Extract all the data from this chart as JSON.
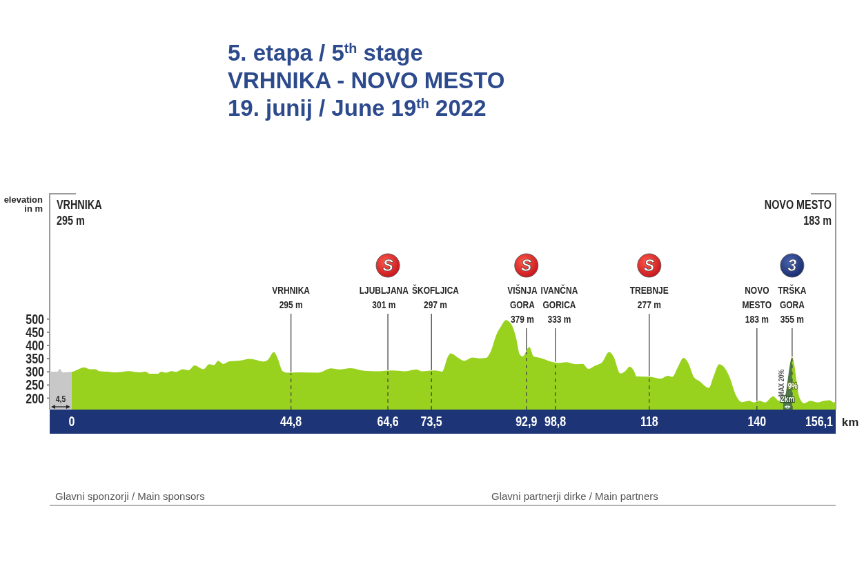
{
  "chart_data": {
    "type": "area",
    "title": "5. etapa / 5$^{th}$ stage",
    "subtitle": "VRHNIKA - NOVO MESTO\n19. junij / June 19$^{th}$ 2022",
    "xlabel": "km",
    "ylabel": "elevation\nin m",
    "color": "#98d21f",
    "x": [
      -4.5,
      -2.9,
      -2.4,
      -1.9,
      0,
      1.4,
      2.5,
      3.7,
      4.9,
      5.6,
      7.2,
      9.1,
      11.7,
      13.8,
      15.1,
      15.9,
      17.6,
      18.3,
      19.2,
      20.4,
      21.3,
      22.7,
      23.9,
      25.1,
      26.9,
      28.1,
      29.1,
      29.9,
      31.0,
      32.1,
      34.5,
      36.3,
      37.7,
      39.1,
      40.1,
      41.3,
      42.0,
      43.1,
      44.1,
      46.4,
      50.4,
      53.0,
      54.6,
      57.0,
      59.8,
      62.6,
      65.4,
      68.2,
      70.4,
      71.5,
      74.2,
      75.7,
      76.9,
      77.4,
      79.1,
      80.2,
      81.9,
      83.3,
      84.7,
      85.6,
      86.8,
      87.7,
      88.7,
      89.8,
      90.8,
      91.5,
      92.1,
      93.5,
      94.4,
      95.9,
      98.3,
      99.5,
      101.1,
      103.0,
      104.4,
      105.6,
      107.0,
      108.4,
      109.8,
      110.7,
      112.1,
      113.1,
      114.0,
      114.9,
      115.4,
      118.2,
      120.3,
      121.8,
      122.7,
      123.9,
      125.0,
      126.0,
      127.1,
      128.3,
      130.2,
      131.1,
      132.3,
      133.2,
      134.4,
      135.6,
      137.0,
      138.4,
      139.4,
      140.5,
      141.7,
      143.3,
      144.5,
      145.5,
      147.2,
      148.7,
      149.7,
      150.9,
      152.5,
      153.7,
      154.9,
      155.6,
      156.1
    ],
    "values": [
      301,
      301,
      311,
      298,
      300,
      310,
      317,
      310,
      310,
      303,
      301,
      298,
      303,
      298,
      301,
      293,
      293,
      301,
      297,
      303,
      300,
      310,
      306,
      324,
      310,
      329,
      326,
      342,
      330,
      339,
      343,
      349,
      345,
      339,
      346,
      375,
      355,
      303,
      297,
      298,
      297,
      313,
      309,
      314,
      304,
      302,
      305,
      302,
      309,
      302,
      305,
      301,
      359,
      370,
      352,
      342,
      354,
      351,
      353,
      377,
      442,
      472,
      496,
      481,
      429,
      368,
      358,
      394,
      358,
      352,
      337,
      334,
      337,
      329,
      330,
      311,
      324,
      337,
      375,
      358,
      294,
      303,
      320,
      303,
      283,
      281,
      274,
      285,
      281,
      320,
      353,
      333,
      281,
      264,
      239,
      281,
      329,
      320,
      281,
      216,
      185,
      190,
      184,
      190,
      184,
      207,
      190,
      190,
      355,
      203,
      181,
      190,
      184,
      190,
      192,
      184,
      187
    ],
    "xlim": [
      -4.5,
      156.1
    ],
    "ylim": [
      157,
      975
    ],
    "xticks": [
      0,
      {
        "value": 44.8,
        "label": "44,8"
      },
      {
        "value": 64.6,
        "label": "64,6"
      },
      {
        "value": 73.5,
        "label": "73,5"
      },
      {
        "value": 92.9,
        "label": "92,9"
      },
      {
        "value": 98.8,
        "label": "98,8"
      },
      118,
      140,
      {
        "value": 156.1,
        "label": "156,1"
      }
    ],
    "yticks": [
      200,
      250,
      300,
      350,
      400,
      450,
      500
    ],
    "ref_lines": [
      {
        "axis": "x",
        "value": 44.8,
        "label": "VRHNIKA\n295 m"
      },
      {
        "axis": "x",
        "value": 64.6,
        "label": "LJUBLJANA\n301 m"
      },
      {
        "axis": "x",
        "value": 73.5,
        "label": "ŠKOFLJICA\n297 m"
      },
      {
        "axis": "x",
        "value": 92.9,
        "label": "VIŠNJA\nGORA\n379 m"
      },
      {
        "axis": "x",
        "value": 98.8,
        "label": "IVANČNA\nGORICA\n333 m"
      },
      {
        "axis": "x",
        "value": 118,
        "label": "TREBNJE\n277 m"
      },
      {
        "axis": "x",
        "value": 140,
        "label": "NOVO\nMESTO\n183 m"
      },
      {
        "axis": "x",
        "value": 147.2,
        "label": "TRŠKA\nGORA\n355 m"
      }
    ],
    "bands": [
      {
        "axis": "x",
        "from": -4.5,
        "to": 0,
        "label": "4,5",
        "color": "#c8c8c8"
      },
      {
        "axis": "x",
        "from": 145.3,
        "to": 147.2,
        "label": "2km",
        "color": "#4b7847"
      }
    ],
    "annotations": [
      "VRHNIKA\n295 m",
      "NOVO MESTO\n183 m",
      "Glavni sponzorji / Main sponsors",
      "Glavni partnerji dirke / Main partners",
      {
        "text": "S",
        "x": 64.6
      },
      {
        "text": "S",
        "x": 92.9
      },
      {
        "text": "S",
        "x": 118
      },
      {
        "text": "3",
        "x": 147.2
      },
      {
        "text": "9%",
        "x": 147.3,
        "y": 245
      },
      {
        "text": "MAX 20%",
        "x": 146.2,
        "y": 258
      }
    ]
  }
}
